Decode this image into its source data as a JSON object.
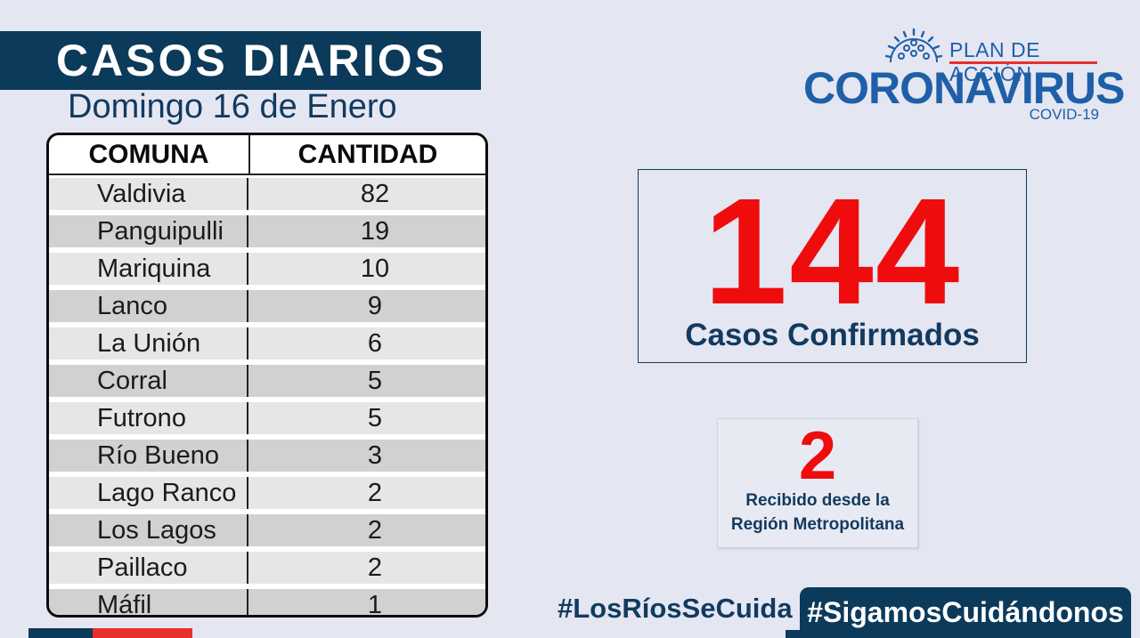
{
  "header": {
    "title": "CASOS DIARIOS",
    "date": "Domingo 16 de Enero"
  },
  "table": {
    "headers": [
      "COMUNA",
      "CANTIDAD"
    ],
    "rows": [
      {
        "comuna": "Valdivia",
        "cantidad": "82"
      },
      {
        "comuna": "Panguipulli",
        "cantidad": "19"
      },
      {
        "comuna": "Mariquina",
        "cantidad": "10"
      },
      {
        "comuna": "Lanco",
        "cantidad": "9"
      },
      {
        "comuna": "La Unión",
        "cantidad": "6"
      },
      {
        "comuna": "Corral",
        "cantidad": "5"
      },
      {
        "comuna": "Futrono",
        "cantidad": "5"
      },
      {
        "comuna": "Río Bueno",
        "cantidad": "3"
      },
      {
        "comuna": "Lago Ranco",
        "cantidad": "2"
      },
      {
        "comuna": "Los Lagos",
        "cantidad": "2"
      },
      {
        "comuna": "Paillaco",
        "cantidad": "2"
      },
      {
        "comuna": "Máfil",
        "cantidad": "1"
      }
    ]
  },
  "logo": {
    "plan": "PLAN DE ACCIÓN",
    "main": "CORONAVIRUS",
    "sub": "COVID-19",
    "icon": "sun-emblem-icon"
  },
  "total": {
    "number": "144",
    "label": "Casos Confirmados"
  },
  "rm": {
    "number": "2",
    "label_line1": "Recibido desde la",
    "label_line2": "Región Metropolitana"
  },
  "footer": {
    "hashtag1": "#LosRíosSeCuida",
    "hashtag2": "#SigamosCuidándonos"
  },
  "colors": {
    "navy": "#0c3a5b",
    "brand_blue": "#1f5fa8",
    "red": "#ee0c0c",
    "background": "#e4e6f2"
  }
}
